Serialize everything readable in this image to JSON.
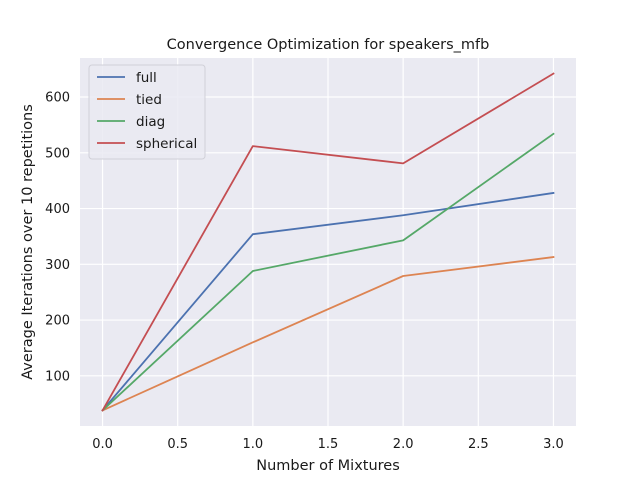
{
  "chart_data": {
    "type": "line",
    "title": "Convergence Optimization for speakers_mfb",
    "xlabel": "Number of Mixtures",
    "ylabel": "Average Iterations over 10 repetitions",
    "x": [
      0,
      1,
      2,
      3
    ],
    "xlim": [
      -0.15,
      3.15
    ],
    "ylim": [
      10,
      670
    ],
    "xticks": [
      0.0,
      0.5,
      1.0,
      1.5,
      2.0,
      2.5,
      3.0
    ],
    "xtick_labels": [
      "0.0",
      "0.5",
      "1.0",
      "1.5",
      "2.0",
      "2.5",
      "3.0"
    ],
    "yticks": [
      100,
      200,
      300,
      400,
      500,
      600
    ],
    "ytick_labels": [
      "100",
      "200",
      "300",
      "400",
      "500",
      "600"
    ],
    "grid": true,
    "legend_position": "top-left",
    "background": "#eaeaf2",
    "series": [
      {
        "name": "full",
        "color": "#4c72b0",
        "values": [
          38,
          354,
          388,
          428
        ]
      },
      {
        "name": "tied",
        "color": "#dd8452",
        "values": [
          38,
          160,
          279,
          313
        ]
      },
      {
        "name": "diag",
        "color": "#55a868",
        "values": [
          38,
          288,
          343,
          534
        ]
      },
      {
        "name": "spherical",
        "color": "#c44e52",
        "values": [
          38,
          512,
          481,
          642
        ]
      }
    ]
  }
}
